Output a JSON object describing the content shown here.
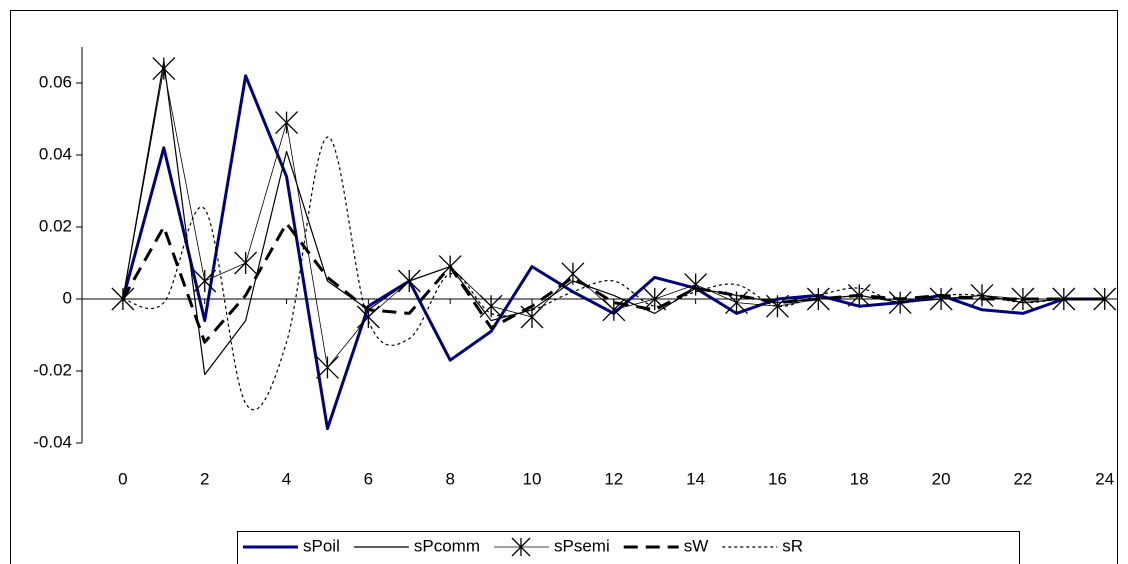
{
  "chart_data": {
    "type": "line",
    "x": [
      0,
      1,
      2,
      3,
      4,
      5,
      6,
      7,
      8,
      9,
      10,
      11,
      12,
      13,
      14,
      15,
      16,
      17,
      18,
      19,
      20,
      21,
      22,
      23,
      24
    ],
    "xlim": [
      -1,
      24.3
    ],
    "xticks": [
      0,
      2,
      4,
      6,
      8,
      10,
      12,
      14,
      16,
      18,
      20,
      22,
      24
    ],
    "ylim": [
      -0.04,
      0.07
    ],
    "yticks": [
      -0.04,
      -0.02,
      0,
      0.02,
      0.04,
      0.06
    ],
    "legend": "bottom",
    "series": [
      {
        "name": "sPoil",
        "color": "#000080",
        "line_width": 3,
        "dash": "solid",
        "marker": "none",
        "smooth": false,
        "values": [
          0,
          0.042,
          -0.006,
          0.062,
          0.034,
          -0.036,
          -0.002,
          0.005,
          -0.017,
          -0.009,
          0.009,
          0.002,
          -0.004,
          0.006,
          0.003,
          -0.004,
          0,
          0.001,
          -0.002,
          -0.001,
          0.001,
          -0.003,
          -0.004,
          0,
          0
        ]
      },
      {
        "name": "sPcomm",
        "color": "#000000",
        "line_width": 1.2,
        "dash": "solid",
        "marker": "none",
        "smooth": false,
        "values": [
          0,
          0.066,
          -0.021,
          -0.006,
          0.041,
          0.005,
          -0.003,
          0.005,
          0.009,
          -0.006,
          -0.003,
          0.005,
          0.001,
          -0.004,
          0.003,
          0.001,
          -0.001,
          0,
          0.001,
          -0.001,
          0,
          0.001,
          -0.001,
          0,
          0
        ]
      },
      {
        "name": "sPsemi",
        "color": "#000000",
        "line_width": 0.8,
        "dash": "solid",
        "marker": "asterisk",
        "smooth": false,
        "values": [
          0,
          0.064,
          0.005,
          0.01,
          0.049,
          -0.019,
          -0.005,
          0.005,
          0.009,
          -0.002,
          -0.005,
          0.007,
          -0.003,
          0,
          0.004,
          -0.001,
          -0.002,
          0,
          0.001,
          -0.001,
          0,
          0.001,
          0,
          0,
          0
        ]
      },
      {
        "name": "sW",
        "color": "#000000",
        "line_width": 3,
        "dash": "dashed",
        "marker": "none",
        "smooth": false,
        "values": [
          0,
          0.02,
          -0.012,
          0.001,
          0.021,
          0.006,
          -0.003,
          -0.004,
          0.009,
          -0.008,
          -0.002,
          0.006,
          -0.001,
          -0.003,
          0.003,
          0.001,
          -0.001,
          0,
          0.001,
          0,
          0.001,
          0,
          0,
          0,
          0
        ]
      },
      {
        "name": "sR",
        "color": "#000000",
        "line_width": 1.2,
        "dash": "dotted",
        "marker": "none",
        "smooth": true,
        "values": [
          0,
          -0.001,
          0.025,
          -0.029,
          -0.012,
          0.045,
          -0.006,
          -0.011,
          0.007,
          -0.004,
          -0.003,
          0.002,
          0.005,
          -0.002,
          0.002,
          0.004,
          -0.002,
          0.001,
          0.003,
          -0.001,
          0.001,
          0.001,
          -0.001,
          0,
          0
        ]
      }
    ]
  }
}
